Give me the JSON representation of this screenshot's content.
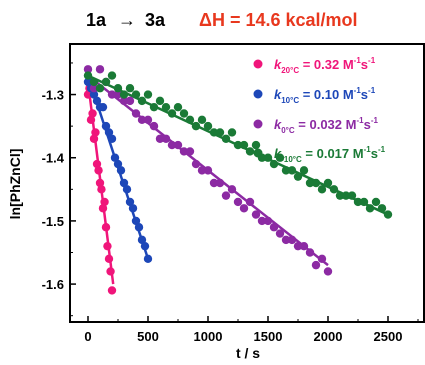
{
  "title": {
    "reaction_from": "1a",
    "arrow": "→",
    "reaction_to": "3a",
    "dh_label": "ΔH = 14.6 kcal/mol"
  },
  "chart_data": {
    "type": "scatter",
    "xlabel": "t / s",
    "ylabel": "ln[PhZnCl]",
    "xlim": [
      -150,
      2800
    ],
    "ylim": [
      -1.66,
      -1.22
    ],
    "xticks": [
      0,
      500,
      1000,
      1500,
      2000,
      2500
    ],
    "yticks": [
      -1.3,
      -1.4,
      -1.5,
      -1.6
    ],
    "ytick_labels": [
      "-1.3",
      "-1.4",
      "-1.5",
      "-1.6"
    ],
    "grid": false,
    "legend_position": "top-right",
    "series": [
      {
        "key": "k20",
        "name_prefix": "k",
        "name_sub": "20°C",
        "name_value": "= 0.32 M",
        "name_sup1": "-1",
        "name_mid": "s",
        "name_sup2": "-1",
        "color": "#f0157a",
        "fit_start": [
          0,
          -1.28
        ],
        "fit_end": [
          210,
          -1.6
        ],
        "x": [
          0,
          12,
          25,
          38,
          50,
          62,
          75,
          88,
          100,
          112,
          125,
          138,
          150,
          162,
          175,
          188,
          200
        ],
        "y": [
          -1.3,
          -1.29,
          -1.34,
          -1.33,
          -1.37,
          -1.36,
          -1.41,
          -1.42,
          -1.44,
          -1.45,
          -1.48,
          -1.47,
          -1.51,
          -1.54,
          -1.56,
          -1.58,
          -1.61
        ]
      },
      {
        "key": "k10",
        "name_prefix": "k",
        "name_sub": "10°C",
        "name_value": "= 0.10 M",
        "name_sup1": "-1",
        "name_mid": "s",
        "name_sup2": "-1",
        "color": "#1d47b8",
        "fit_start": [
          0,
          -1.27
        ],
        "fit_end": [
          500,
          -1.56
        ],
        "x": [
          0,
          25,
          50,
          75,
          100,
          125,
          150,
          175,
          200,
          225,
          250,
          275,
          300,
          325,
          350,
          375,
          400,
          425,
          450,
          475,
          500
        ],
        "y": [
          -1.28,
          -1.29,
          -1.3,
          -1.31,
          -1.32,
          -1.32,
          -1.35,
          -1.36,
          -1.37,
          -1.4,
          -1.41,
          -1.42,
          -1.44,
          -1.45,
          -1.47,
          -1.48,
          -1.5,
          -1.51,
          -1.53,
          -1.54,
          -1.56
        ]
      },
      {
        "key": "k0",
        "name_prefix": "k",
        "name_sub": "0°C",
        "name_value": "= 0.032 M",
        "name_sup1": "-1",
        "name_mid": "s",
        "name_sup2": "-1",
        "color": "#8c2aa3",
        "fit_start": [
          0,
          -1.27
        ],
        "fit_end": [
          2000,
          -1.57
        ],
        "x": [
          0,
          50,
          100,
          150,
          200,
          250,
          300,
          350,
          400,
          450,
          500,
          550,
          600,
          650,
          700,
          750,
          800,
          850,
          900,
          950,
          1000,
          1050,
          1100,
          1150,
          1200,
          1250,
          1300,
          1350,
          1400,
          1450,
          1500,
          1550,
          1600,
          1650,
          1700,
          1750,
          1800,
          1850,
          1900,
          1950,
          2000
        ],
        "y": [
          -1.26,
          -1.29,
          -1.26,
          -1.28,
          -1.3,
          -1.3,
          -1.31,
          -1.31,
          -1.33,
          -1.34,
          -1.34,
          -1.35,
          -1.37,
          -1.37,
          -1.38,
          -1.38,
          -1.39,
          -1.39,
          -1.41,
          -1.42,
          -1.42,
          -1.44,
          -1.44,
          -1.46,
          -1.45,
          -1.47,
          -1.48,
          -1.47,
          -1.49,
          -1.5,
          -1.5,
          -1.51,
          -1.52,
          -1.53,
          -1.53,
          -1.54,
          -1.54,
          -1.55,
          -1.57,
          -1.56,
          -1.58
        ]
      },
      {
        "key": "k_10",
        "name_prefix": "k",
        "name_sub": "-10°C",
        "name_value": "= 0.017 M",
        "name_sup1": "-1",
        "name_mid": "s",
        "name_sup2": "-1",
        "color": "#1a7a36",
        "fit_start": [
          0,
          -1.27
        ],
        "fit_end": [
          2500,
          -1.49
        ],
        "x": [
          0,
          50,
          100,
          150,
          200,
          250,
          300,
          350,
          400,
          450,
          500,
          550,
          600,
          650,
          700,
          750,
          800,
          850,
          900,
          950,
          1000,
          1050,
          1100,
          1150,
          1200,
          1250,
          1300,
          1350,
          1400,
          1450,
          1500,
          1550,
          1600,
          1650,
          1700,
          1750,
          1800,
          1850,
          1900,
          1950,
          2000,
          2050,
          2100,
          2150,
          2200,
          2250,
          2300,
          2350,
          2400,
          2450,
          2500
        ],
        "y": [
          -1.27,
          -1.28,
          -1.29,
          -1.28,
          -1.27,
          -1.29,
          -1.3,
          -1.29,
          -1.3,
          -1.31,
          -1.3,
          -1.32,
          -1.31,
          -1.32,
          -1.33,
          -1.32,
          -1.33,
          -1.34,
          -1.35,
          -1.34,
          -1.35,
          -1.36,
          -1.36,
          -1.37,
          -1.36,
          -1.38,
          -1.38,
          -1.39,
          -1.38,
          -1.4,
          -1.4,
          -1.41,
          -1.4,
          -1.42,
          -1.42,
          -1.43,
          -1.42,
          -1.44,
          -1.44,
          -1.45,
          -1.44,
          -1.45,
          -1.46,
          -1.46,
          -1.46,
          -1.47,
          -1.47,
          -1.48,
          -1.47,
          -1.48,
          -1.49
        ]
      }
    ]
  }
}
